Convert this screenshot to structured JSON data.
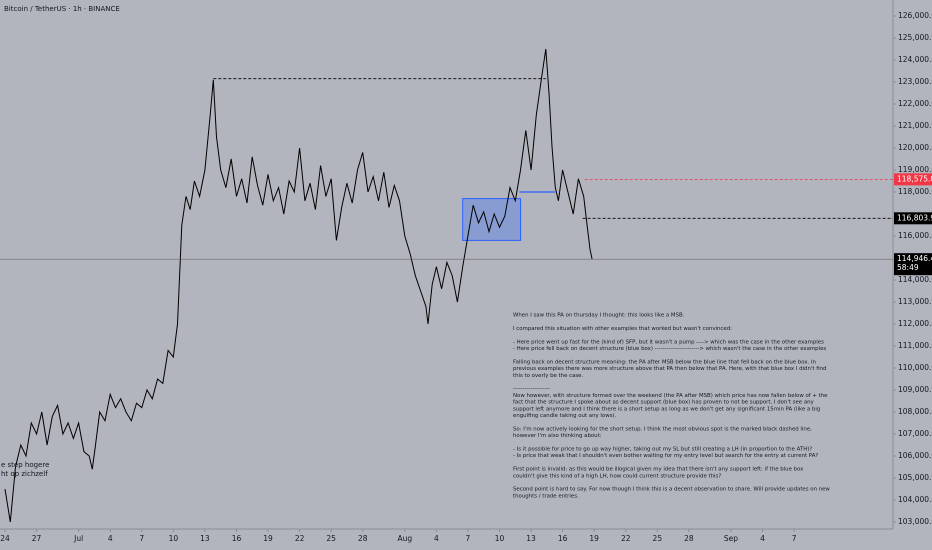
{
  "chart_data": {
    "type": "line",
    "title": "Bitcoin / TetherUS · 1h · BINANCE",
    "x": [
      0,
      0.5,
      1,
      1.5,
      2,
      2.5,
      3,
      3.5,
      4,
      4.5,
      5,
      5.5,
      6,
      6.5,
      7,
      7.5,
      8,
      8.3,
      8.6,
      9,
      9.5,
      10,
      10.5,
      11,
      11.5,
      12,
      12.5,
      13,
      13.5,
      14,
      14.5,
      15,
      15.5,
      16,
      16.4,
      16.8,
      17.2,
      17.6,
      18,
      18.5,
      19,
      19.5,
      19.8,
      20.1,
      20.5,
      21,
      21.5,
      22,
      22.5,
      23,
      23.5,
      24,
      24.5,
      25,
      25.5,
      26,
      26.5,
      27,
      27.5,
      28,
      28.5,
      29,
      29.5,
      30,
      30.5,
      31,
      31.5,
      32,
      32.5,
      33,
      33.5,
      34,
      34.5,
      35,
      35.5,
      36,
      36.5,
      37,
      37.5,
      38,
      38.5,
      39,
      39.5,
      40,
      40.2,
      40.6,
      41,
      41.5,
      42,
      42.5,
      43,
      43.5,
      44,
      44.5,
      45,
      45.5,
      46,
      46.5,
      47,
      47.5,
      48,
      48.5,
      49,
      49.5,
      50,
      50.5,
      51,
      51.4,
      51.7,
      52,
      52.3,
      52.6,
      53,
      53.5,
      54,
      54.5,
      55,
      55.3,
      55.6,
      55.8
    ],
    "series": [
      {
        "color": "#000000",
        "values": [
          104500,
          103000,
          105500,
          106500,
          106000,
          107500,
          107000,
          108000,
          106500,
          107800,
          108300,
          107000,
          107500,
          106800,
          107500,
          106200,
          106000,
          105400,
          106500,
          108000,
          107600,
          108800,
          108200,
          108600,
          108000,
          107600,
          108400,
          108200,
          109000,
          108600,
          109500,
          109300,
          110800,
          110500,
          112000,
          116500,
          117800,
          117200,
          118500,
          117800,
          119000,
          121500,
          123100,
          120500,
          119000,
          118200,
          119500,
          117800,
          118600,
          117500,
          119600,
          118300,
          117400,
          118800,
          117600,
          118200,
          117000,
          118500,
          118000,
          120000,
          117600,
          118400,
          117200,
          119200,
          117800,
          118600,
          115800,
          117300,
          118400,
          117500,
          119000,
          119800,
          118000,
          118700,
          117600,
          118900,
          117300,
          118300,
          117600,
          116000,
          115200,
          114200,
          113500,
          112800,
          112000,
          113800,
          114600,
          113600,
          114800,
          114200,
          113000,
          114600,
          116000,
          117400,
          116600,
          117100,
          116200,
          117000,
          116400,
          116900,
          118200,
          117600,
          119000,
          120800,
          119000,
          121500,
          123200,
          124500,
          122500,
          120000,
          118200,
          117600,
          119000,
          118000,
          117000,
          118600,
          117800,
          116600,
          115400,
          114946.49
        ]
      }
    ],
    "xlim": [
      -0.475,
      84.4
    ],
    "xticks": [
      {
        "value": 0,
        "label": "24"
      },
      {
        "value": 3,
        "label": "27"
      },
      {
        "value": 7,
        "label": "Jul"
      },
      {
        "value": 10,
        "label": "4"
      },
      {
        "value": 13,
        "label": "7"
      },
      {
        "value": 16,
        "label": "10"
      },
      {
        "value": 19,
        "label": "13"
      },
      {
        "value": 22,
        "label": "16"
      },
      {
        "value": 25,
        "label": "19"
      },
      {
        "value": 28,
        "label": "22"
      },
      {
        "value": 31,
        "label": "25"
      },
      {
        "value": 34,
        "label": "28"
      },
      {
        "value": 38,
        "label": "Aug"
      },
      {
        "value": 41,
        "label": "4"
      },
      {
        "value": 44,
        "label": "7"
      },
      {
        "value": 47,
        "label": "10"
      },
      {
        "value": 50,
        "label": "13"
      },
      {
        "value": 53,
        "label": "16"
      },
      {
        "value": 56,
        "label": "19"
      },
      {
        "value": 59,
        "label": "22"
      },
      {
        "value": 62,
        "label": "25"
      },
      {
        "value": 65,
        "label": "28"
      },
      {
        "value": 69,
        "label": "Sep"
      },
      {
        "value": 72,
        "label": "4"
      },
      {
        "value": 75,
        "label": "7"
      }
    ],
    "ylim": [
      102727,
      126727
    ],
    "yticks": [
      {
        "value": 126000,
        "label": "126,000.00"
      },
      {
        "value": 125000,
        "label": "125,000.00"
      },
      {
        "value": 124000,
        "label": "124,000.00"
      },
      {
        "value": 123000,
        "label": "123,000.00"
      },
      {
        "value": 122000,
        "label": "122,000.00"
      },
      {
        "value": 121000,
        "label": "121,000.00"
      },
      {
        "value": 120000,
        "label": "120,000.00"
      },
      {
        "value": 119000,
        "label": "119,000.00"
      },
      {
        "value": 118000,
        "label": "118,000.00"
      },
      {
        "value": 116000,
        "label": "116,000.00"
      },
      {
        "value": 114000,
        "label": "114,000.00"
      },
      {
        "value": 113000,
        "label": "113,000.00"
      },
      {
        "value": 112000,
        "label": "112,000.00"
      },
      {
        "value": 111000,
        "label": "111,000.00"
      },
      {
        "value": 110000,
        "label": "110,000.00"
      },
      {
        "value": 109000,
        "label": "109,000.00"
      },
      {
        "value": 108000,
        "label": "108,000.00"
      },
      {
        "value": 107000,
        "label": "107,000.00"
      },
      {
        "value": 106000,
        "label": "106,000.00"
      },
      {
        "value": 105000,
        "label": "105,000.00"
      },
      {
        "value": 104000,
        "label": "104,000.00"
      },
      {
        "value": 103000,
        "label": "103,000.00"
      }
    ],
    "levels": [
      {
        "value": 123150,
        "x": [
          19.8,
          51.4
        ],
        "color": "#000000",
        "dashed": true
      },
      {
        "value": 118000,
        "x": [
          48.9,
          52.3
        ],
        "color": "#2962ff",
        "dashed": false
      },
      {
        "value": 118575,
        "x": [
          55.1,
          84.4
        ],
        "color": "#f23645",
        "dashed": true
      },
      {
        "value": 116803.99,
        "x": [
          54.9,
          84.4
        ],
        "color": "#000000",
        "dashed": true
      }
    ],
    "box": {
      "x": [
        43.5,
        49
      ],
      "y": [
        115800,
        117700
      ],
      "color": "#2962ff"
    },
    "price_labels": [
      {
        "value": 118575,
        "label": "118,575.00",
        "color": "#f23645"
      },
      {
        "value": 116803.99,
        "label": "116,803.99",
        "color": "#000000"
      },
      {
        "value": 114946.49,
        "label": "114,946.49",
        "color": "#000000",
        "countdown": "58:49"
      }
    ],
    "note_left": [
      "e step hogere",
      "ht op zichzelf"
    ],
    "note": [
      [
        "When I saw this PA on thursday I thought: this looks like a MSB."
      ],
      [
        "I compared this situation with other examples that worked but wasn't convinced:"
      ],
      [
        "- Here price went up fast for the (kind of) SFP, but it wasn't a pump ----> which was the case in the other examples",
        "- Here price fell back on decent structure (blue box) -----------------------> which wasn't the case in the other examples"
      ],
      [
        "Falling back on decent structure meaning: the PA after MSB below the blue line that fell back on the blue box. In",
        "previous examples there was more structure above that PA then below that PA. Here, with that blue box I didn't find",
        "this to overly be the case."
      ],
      [
        "-------------------",
        "Now however, with structure formed over the weekend (the PA after MSB) which price has now fallen below of + the",
        "fact that the structure I spoke about as decent support (blue box) has proven to not be support, I don't see any",
        "support left anymore and I think there is a short setup as long as we don't get any significant 15min PA (like a big",
        "engulfing candle taking out any lows)."
      ],
      [
        "So: I'm now actively looking for the short setup. I think the most obvious spot is the marked black dashed line,",
        "however I'm also thinking about:"
      ],
      [
        "- Is it possible for price to go up way higher, taking out my SL but still creating a LH (in proportion to the ATH)?",
        "- Is price that weak that I shouldn't even bother waiting for my entry level but search for the entry at current PA?"
      ],
      [
        "First point is invalid: as this would be illogical given my idea that there isn't any support left: if the blue box",
        "couldn't give this kind of a high LH, how could current structure provide this?"
      ],
      [
        "Second point is hard to say. For now though I think this is a decent observation to share. Will provide updates on new",
        "thoughts / trade entries."
      ]
    ]
  }
}
